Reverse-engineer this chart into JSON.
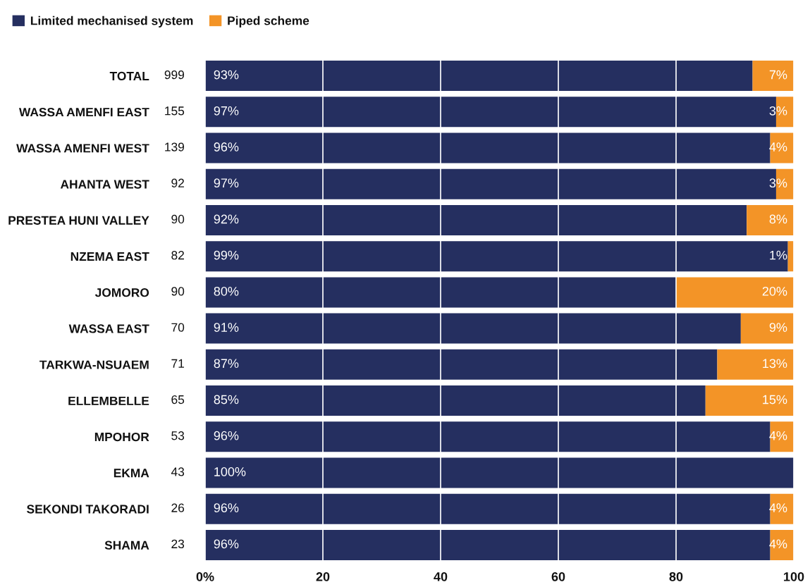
{
  "chart_data": {
    "type": "bar",
    "orientation": "horizontal",
    "stacked": true,
    "categories": [
      "TOTAL",
      "WASSA AMENFI EAST",
      "WASSA AMENFI WEST",
      "AHANTA WEST",
      "PRESTEA HUNI VALLEY",
      "NZEMA EAST",
      "JOMORO",
      "WASSA EAST",
      "TARKWA-NSUAEM",
      "ELLEMBELLE",
      "MPOHOR",
      "EKMA",
      "SEKONDI TAKORADI",
      "SHAMA"
    ],
    "y2_categories": [
      "999",
      "155",
      "139",
      "92",
      "90",
      "82",
      "90",
      "70",
      "71",
      "65",
      "53",
      "43",
      "26",
      "23"
    ],
    "series": [
      {
        "name": "Limited mechanised system",
        "color": "#252f60",
        "values": [
          93,
          97,
          96,
          97,
          92,
          99,
          80,
          91,
          87,
          85,
          96,
          100,
          96,
          96
        ],
        "value_labels": [
          "93%",
          "97%",
          "96%",
          "97%",
          "92%",
          "99%",
          "80%",
          "91%",
          "87%",
          "85%",
          "96%",
          "100%",
          "96%",
          "96%"
        ]
      },
      {
        "name": "Piped scheme",
        "color": "#f39427",
        "values": [
          7,
          3,
          4,
          3,
          8,
          1,
          20,
          9,
          13,
          15,
          4,
          0,
          4,
          4
        ],
        "value_labels": [
          "7%",
          "3%",
          "4%",
          "3%",
          "8%",
          "1%",
          "20%",
          "9%",
          "13%",
          "15%",
          "4%",
          null,
          "4%",
          "4%"
        ]
      }
    ],
    "xlim": [
      0,
      100
    ],
    "xticks": [
      {
        "value": 0,
        "label": "0%"
      },
      20,
      40,
      60,
      80,
      100
    ],
    "grid": "x",
    "legend": "top left"
  }
}
